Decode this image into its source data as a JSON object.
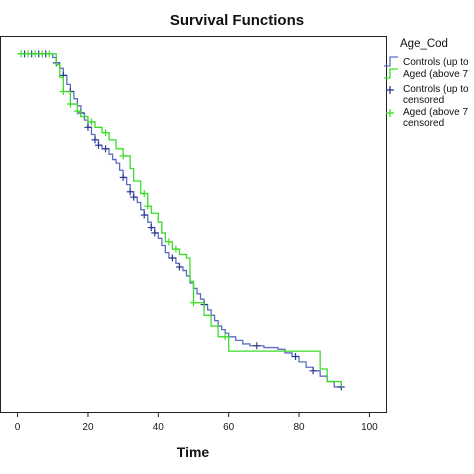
{
  "chart_data": {
    "type": "line",
    "title": "Survival Functions",
    "xlabel": "Time",
    "ylabel": "",
    "xlim": [
      -5,
      105
    ],
    "ylim": [
      0,
      1.05
    ],
    "x_ticks": [
      "0",
      "20",
      "40",
      "60",
      "80",
      "100"
    ],
    "x_tick_values": [
      0,
      20,
      40,
      60,
      80,
      100
    ],
    "grid": false,
    "legend_title": "Age_Cod",
    "legend_position": "right",
    "legend_entries": [
      {
        "label": "Controls (up to",
        "color": "#5b6fc2",
        "marker": "line"
      },
      {
        "label": "Aged (above 7",
        "color": "#3ddc2a",
        "marker": "line"
      },
      {
        "label_lines": [
          "Controls (up to",
          "censored"
        ],
        "color": "#2e3b8f",
        "marker": "plus"
      },
      {
        "label_lines": [
          "Aged (above 7",
          "censored"
        ],
        "color": "#3ddc2a",
        "marker": "plus"
      }
    ],
    "series": [
      {
        "name": "Controls (up to",
        "color": "#5b6fc2",
        "steps": [
          [
            0,
            1.0
          ],
          [
            9,
            1.0
          ],
          [
            10,
            0.99
          ],
          [
            11,
            0.975
          ],
          [
            12,
            0.96
          ],
          [
            13,
            0.94
          ],
          [
            14,
            0.915
          ],
          [
            15,
            0.895
          ],
          [
            16,
            0.875
          ],
          [
            17,
            0.855
          ],
          [
            18,
            0.835
          ],
          [
            19,
            0.815
          ],
          [
            20,
            0.795
          ],
          [
            21,
            0.775
          ],
          [
            22,
            0.76
          ],
          [
            23,
            0.745
          ],
          [
            24,
            0.735
          ],
          [
            26,
            0.72
          ],
          [
            27,
            0.705
          ],
          [
            28,
            0.695
          ],
          [
            29,
            0.675
          ],
          [
            30,
            0.655
          ],
          [
            31,
            0.635
          ],
          [
            32,
            0.615
          ],
          [
            33,
            0.6
          ],
          [
            34,
            0.585
          ],
          [
            35,
            0.565
          ],
          [
            36,
            0.55
          ],
          [
            37,
            0.53
          ],
          [
            38,
            0.515
          ],
          [
            39,
            0.5
          ],
          [
            40,
            0.485
          ],
          [
            41,
            0.465
          ],
          [
            42,
            0.445
          ],
          [
            43,
            0.43
          ],
          [
            45,
            0.415
          ],
          [
            46,
            0.405
          ],
          [
            47,
            0.395
          ],
          [
            48,
            0.38
          ],
          [
            49,
            0.36
          ],
          [
            50,
            0.345
          ],
          [
            51,
            0.33
          ],
          [
            52,
            0.315
          ],
          [
            53,
            0.3
          ],
          [
            54,
            0.285
          ],
          [
            55,
            0.27
          ],
          [
            56,
            0.255
          ],
          [
            57,
            0.24
          ],
          [
            58,
            0.23
          ],
          [
            59,
            0.22
          ],
          [
            60,
            0.21
          ],
          [
            62,
            0.2
          ],
          [
            64,
            0.19
          ],
          [
            66,
            0.185
          ],
          [
            70,
            0.18
          ],
          [
            74,
            0.175
          ],
          [
            76,
            0.165
          ],
          [
            78,
            0.155
          ],
          [
            80,
            0.14
          ],
          [
            82,
            0.125
          ],
          [
            84,
            0.115
          ],
          [
            86,
            0.1
          ],
          [
            88,
            0.085
          ],
          [
            90,
            0.07
          ],
          [
            92,
            0.07
          ]
        ],
        "censored": [
          [
            2,
            1.0
          ],
          [
            4,
            1.0
          ],
          [
            6,
            1.0
          ],
          [
            8,
            1.0
          ],
          [
            11,
            0.975
          ],
          [
            13,
            0.94
          ],
          [
            15,
            0.895
          ],
          [
            18,
            0.835
          ],
          [
            20,
            0.795
          ],
          [
            22,
            0.76
          ],
          [
            23,
            0.745
          ],
          [
            25,
            0.735
          ],
          [
            30,
            0.655
          ],
          [
            32,
            0.615
          ],
          [
            33,
            0.6
          ],
          [
            36,
            0.55
          ],
          [
            38,
            0.515
          ],
          [
            39,
            0.5
          ],
          [
            44,
            0.43
          ],
          [
            46,
            0.405
          ],
          [
            53,
            0.3
          ],
          [
            68,
            0.185
          ],
          [
            79,
            0.155
          ],
          [
            84,
            0.115
          ],
          [
            92,
            0.07
          ]
        ]
      },
      {
        "name": "Aged (above 7",
        "color": "#3ddc2a",
        "steps": [
          [
            0,
            1.0
          ],
          [
            10,
            1.0
          ],
          [
            11,
            0.97
          ],
          [
            12,
            0.935
          ],
          [
            13,
            0.895
          ],
          [
            15,
            0.86
          ],
          [
            17,
            0.84
          ],
          [
            18,
            0.825
          ],
          [
            20,
            0.81
          ],
          [
            22,
            0.795
          ],
          [
            24,
            0.78
          ],
          [
            26,
            0.76
          ],
          [
            28,
            0.735
          ],
          [
            30,
            0.715
          ],
          [
            32,
            0.68
          ],
          [
            33,
            0.645
          ],
          [
            35,
            0.61
          ],
          [
            37,
            0.575
          ],
          [
            38,
            0.555
          ],
          [
            40,
            0.53
          ],
          [
            41,
            0.5
          ],
          [
            42,
            0.475
          ],
          [
            44,
            0.455
          ],
          [
            46,
            0.44
          ],
          [
            48,
            0.43
          ],
          [
            49,
            0.365
          ],
          [
            50,
            0.305
          ],
          [
            53,
            0.27
          ],
          [
            55,
            0.24
          ],
          [
            57,
            0.21
          ],
          [
            60,
            0.17
          ],
          [
            80,
            0.17
          ],
          [
            86,
            0.12
          ],
          [
            88,
            0.085
          ],
          [
            92,
            0.07
          ]
        ],
        "censored": [
          [
            1,
            1.0
          ],
          [
            3,
            1.0
          ],
          [
            5,
            1.0
          ],
          [
            7,
            1.0
          ],
          [
            9,
            1.0
          ],
          [
            13,
            0.895
          ],
          [
            15,
            0.86
          ],
          [
            17,
            0.84
          ],
          [
            21,
            0.81
          ],
          [
            25,
            0.78
          ],
          [
            30,
            0.715
          ],
          [
            36,
            0.61
          ],
          [
            37,
            0.575
          ],
          [
            43,
            0.475
          ],
          [
            45,
            0.455
          ],
          [
            50,
            0.305
          ],
          [
            59,
            0.21
          ]
        ]
      }
    ]
  }
}
